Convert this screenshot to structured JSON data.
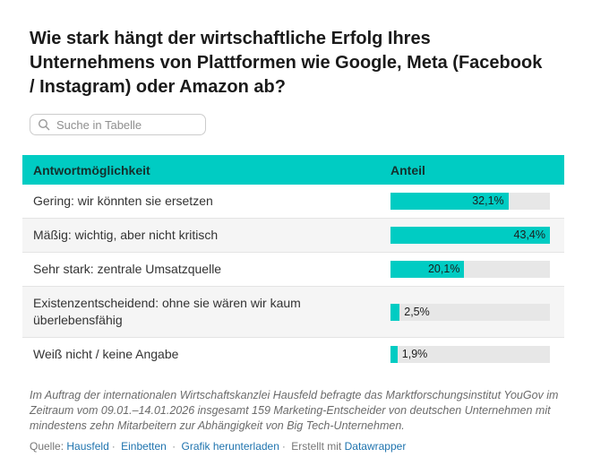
{
  "header": {
    "title": "Wie stark hängt der wirtschaftliche Erfolg Ihres\nUnternehmens von Plattformen wie Google, Meta (Facebook\n/ Instagram) oder Amazon ab?"
  },
  "search": {
    "placeholder": "Suche in Tabelle",
    "icon": "magnifier"
  },
  "table": {
    "columns": [
      "Antwortmöglichkeit",
      "Anteil"
    ]
  },
  "chart_data": {
    "type": "bar",
    "orientation": "horizontal",
    "title": "Wie stark hängt der wirtschaftliche Erfolg Ihres Unternehmens von Plattformen wie Google, Meta (Facebook / Instagram) oder Amazon ab?",
    "categories": [
      "Gering: wir könnten sie ersetzen",
      "Mäßig: wichtig, aber nicht kritisch",
      "Sehr stark: zentrale Umsatzquelle",
      "Existenzentscheidend: ohne sie wären wir kaum überlebensfähig",
      "Weiß nicht / keine Angabe"
    ],
    "values": [
      32.1,
      43.4,
      20.1,
      2.5,
      1.9
    ],
    "value_labels": [
      "32,1%",
      "43,4%",
      "20,1%",
      "2,5%",
      "1,9%"
    ],
    "xlabel": "",
    "ylabel": "Anteil",
    "xlim": [
      0,
      43.4
    ],
    "grid": false,
    "legend": "none",
    "scale_note": "bars scaled relative to max value (43,4% = full track width)"
  },
  "footer": {
    "notes": "Im Auftrag der internationalen Wirtschaftskanzlei Hausfeld befragte das Marktforschungsinstitut YouGov im\nZeitraum vom 09.01.–14.01.2026 insgesamt 159 Marketing-Entscheider von deutschen Unternehmen mit\nmindestens zehn Mitarbeitern zur Abhängigkeit von Big Tech-Unternehmen.",
    "source_label": "Quelle:",
    "source_link": "Hausfeld",
    "embed_link": "Einbetten",
    "download_link": "Grafik herunterladen",
    "created_with_label": "Erstellt mit",
    "created_with_link": "Datawrapper",
    "separator": "·"
  },
  "colors": {
    "accent": "#00CCC3",
    "link": "#1e73ae",
    "row_alt": "#f5f5f5",
    "track": "#e7e7e7"
  }
}
